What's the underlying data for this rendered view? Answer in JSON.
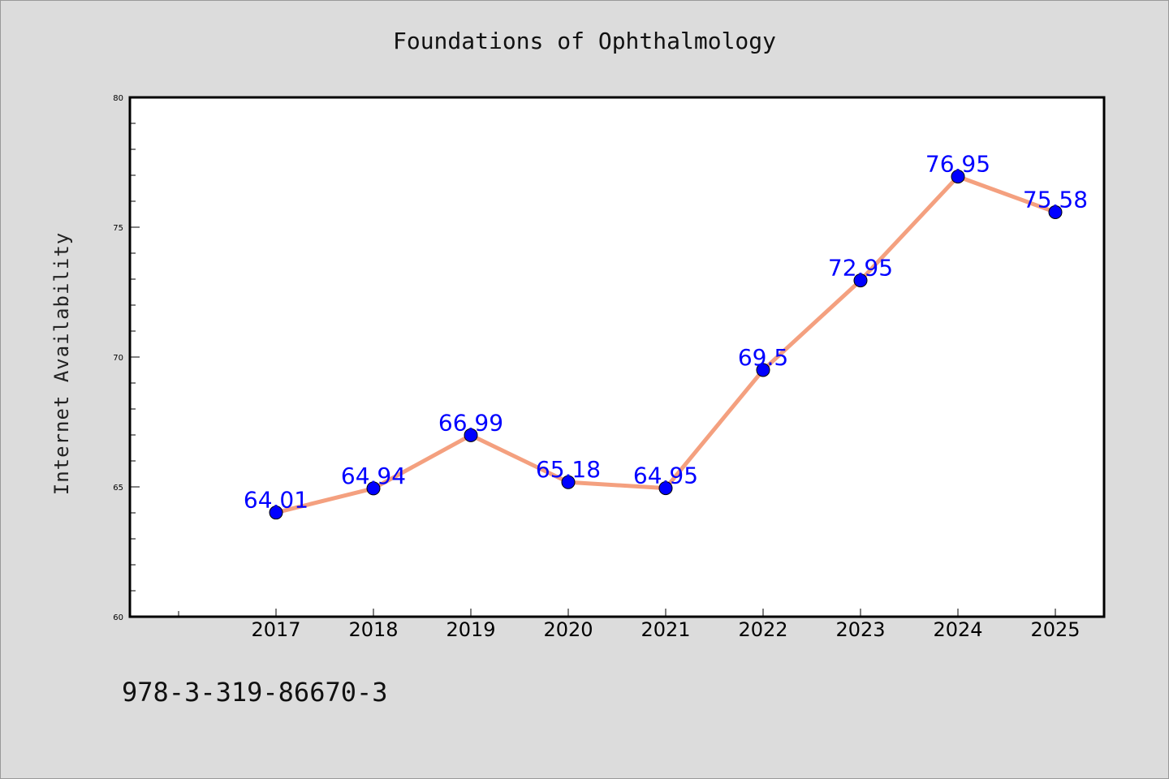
{
  "title": "Foundations of Ophthalmology",
  "ylabel": "Internet Availability",
  "isbn": "978-3-319-86670-3",
  "colors": {
    "background": "#dcdcdc",
    "plot_background": "#ffffff",
    "line": "#f4a07f",
    "marker": "#0000ff",
    "data_label": "#0000ff"
  },
  "chart_data": {
    "type": "line",
    "title": "Foundations of Ophthalmology",
    "xlabel": "",
    "ylabel": "Internet Availability",
    "categories": [
      "2017",
      "2018",
      "2019",
      "2020",
      "2021",
      "2022",
      "2023",
      "2024",
      "2025"
    ],
    "values": [
      64.01,
      64.94,
      66.99,
      65.18,
      64.95,
      69.5,
      72.95,
      76.95,
      75.58
    ],
    "data_labels": [
      "64.01",
      "64.94",
      "66.99",
      "65.18",
      "64.95",
      "69.5",
      "72.95",
      "76.95",
      "75.58"
    ],
    "ylim": [
      60,
      80
    ],
    "yticks": [
      "60",
      "65",
      "70",
      "75",
      "80"
    ],
    "grid": false,
    "legend": "none"
  }
}
